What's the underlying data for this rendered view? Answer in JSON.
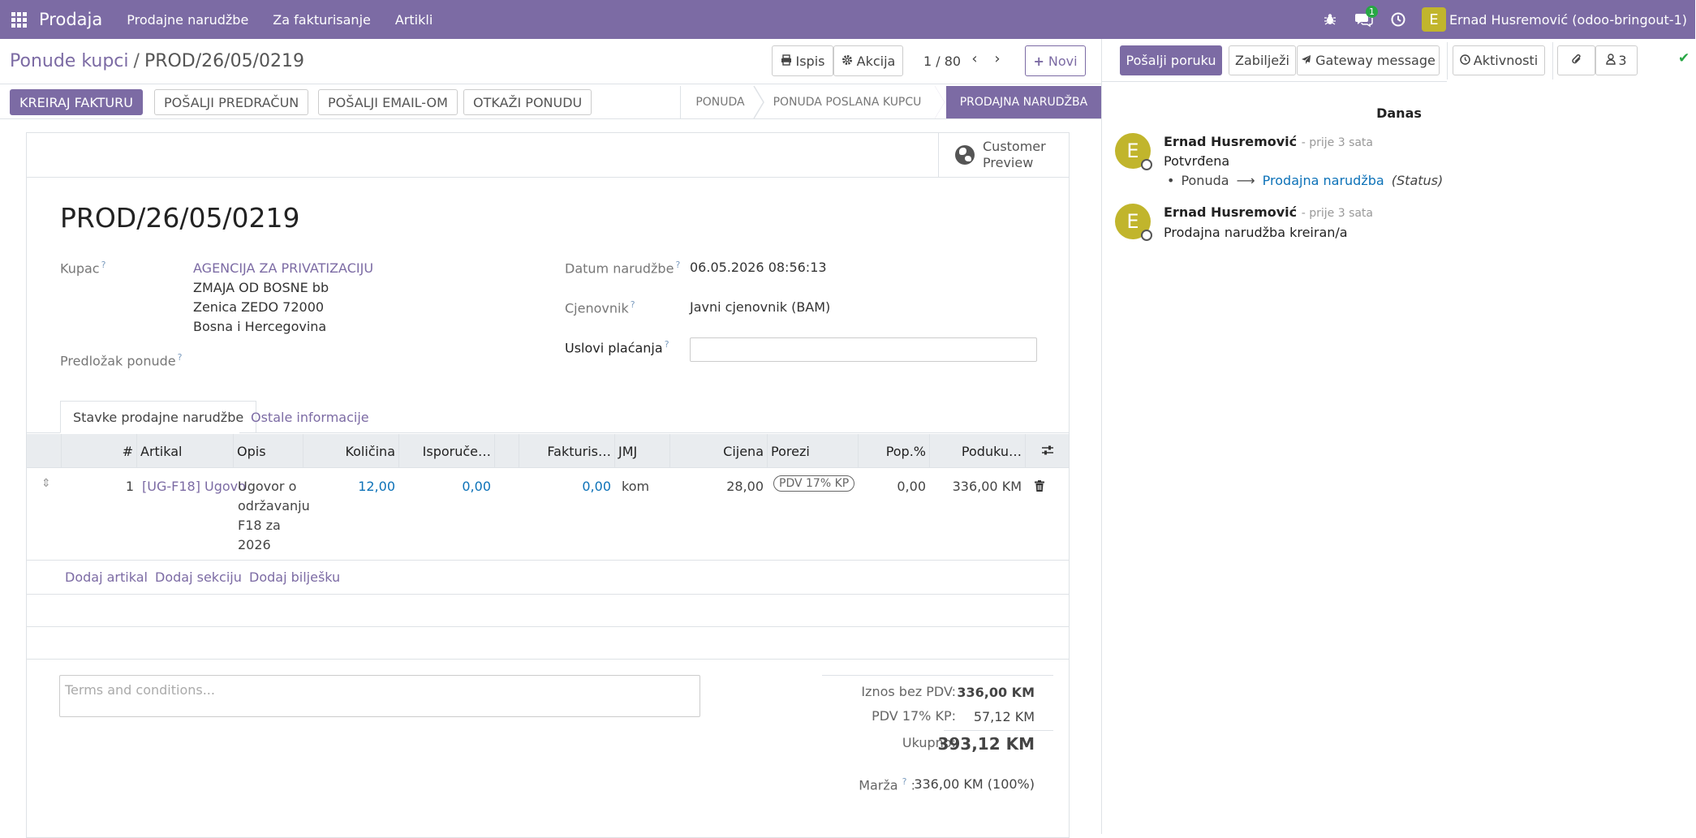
{
  "navbar": {
    "brand": "Prodaja",
    "menu": [
      "Prodajne narudžbe",
      "Za fakturisanje",
      "Artikli"
    ],
    "messages_badge": "1",
    "user_initial": "E",
    "user_name": "Ernad Husremović (odoo-bringout-1)"
  },
  "breadcrumb": {
    "parent": "Ponude kupci",
    "separator": "/",
    "current": "PROD/26/05/0219"
  },
  "toolbar": {
    "print_label": "Ispis",
    "action_label": "Akcija",
    "pager": "1 / 80",
    "new_label": "Novi"
  },
  "status_buttons": {
    "create_invoice": "KREIRAJ FAKTURU",
    "send_proforma": "POŠALJI PREDRAČUN",
    "send_email": "POŠALJI EMAIL-OM",
    "cancel_quote": "OTKAŽI PONUDU"
  },
  "stages": [
    "PONUDA",
    "PONUDA POSLANA KUPCU",
    "PRODAJNA NARUDŽBA"
  ],
  "form": {
    "customer_preview": [
      "Customer",
      "Preview"
    ],
    "title": "PROD/26/05/0219",
    "customer_label": "Kupac",
    "customer_name": "AGENCIJA ZA PRIVATIZACIJU",
    "customer_address": [
      "ZMAJA OD BOSNE bb",
      "Zenica ZEDO 72000",
      "Bosna i Hercegovina"
    ],
    "template_label": "Predložak ponude",
    "order_date_label": "Datum narudžbe",
    "order_date": "06.05.2026 08:56:13",
    "pricelist_label": "Cjenovnik",
    "pricelist": "Javni cjenovnik (BAM)",
    "payment_terms_label": "Uslovi plaćanja",
    "help_mark": "?"
  },
  "tabs": [
    "Stavke prodajne narudžbe",
    "Ostale informacije"
  ],
  "table": {
    "columns": [
      "#",
      "Artikal",
      "Opis",
      "Količina",
      "Isporuče…",
      "Fakturis…",
      "JMJ",
      "Cijena",
      "Porezi",
      "Pop.%",
      "Poduku…"
    ],
    "row": {
      "num": "1",
      "product": "[UG-F18] Ugovo",
      "description": [
        "Ugovor o",
        "održavanju",
        "F18 za",
        "2026"
      ],
      "qty": "12,00",
      "delivered": "0,00",
      "invoiced": "0,00",
      "uom": "kom",
      "price": "28,00",
      "tax": "PDV 17% KP",
      "discount": "0,00",
      "subtotal": "336,00 KM"
    },
    "add_links": [
      "Dodaj artikal",
      "Dodaj sekciju",
      "Dodaj bilješku"
    ]
  },
  "terms_placeholder": "Terms and conditions...",
  "totals": {
    "untaxed_label": "Iznos bez PDV:",
    "untaxed": "336,00 KM",
    "tax_label": "PDV 17% KP:",
    "tax": "57,12 KM",
    "total_label": "Ukupno:",
    "total": "393,12 KM",
    "margin_label": "Marža",
    "margin": "336,00 KM (100%)"
  },
  "chatter": {
    "send_message": "Pošalji poruku",
    "log_note": "Zabilježi",
    "gateway": "Gateway message",
    "activities": "Aktivnosti",
    "followers": "3",
    "today": "Danas",
    "messages": [
      {
        "initial": "E",
        "author": "Ernad Husremović",
        "ago": "- prije 3 sata",
        "body": "Potvrđena",
        "tracking_old": "Ponuda",
        "tracking_new": "Prodajna narudžba",
        "tracking_field": "(Status)"
      },
      {
        "initial": "E",
        "author": "Ernad Husremović",
        "ago": "- prije 3 sata",
        "body": "Prodajna narudžba kreiran/a"
      }
    ]
  },
  "colors": {
    "brand": "#7c6ba4",
    "link_blue": "#0d72b8",
    "avatar": "#c1b52c",
    "badge_green": "#28a745"
  }
}
